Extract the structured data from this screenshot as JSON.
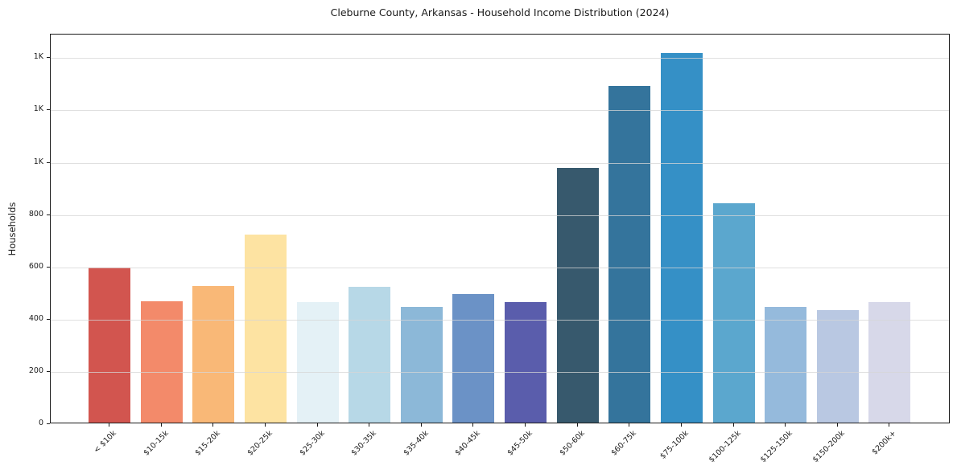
{
  "chart_data": {
    "type": "bar",
    "title": "Cleburne County, Arkansas - Household Income Distribution (2024)",
    "xlabel": "",
    "ylabel": "Households",
    "categories": [
      "< $10k",
      "$10-15k",
      "$15-20k",
      "$20-25k",
      "$25-30k",
      "$30-35k",
      "$35-40k",
      "$40-45k",
      "$45-50k",
      "$50-60k",
      "$60-75k",
      "$75-100k",
      "$100-125k",
      "$125-150k",
      "$150-200k",
      "$200k+"
    ],
    "values": [
      593,
      463,
      523,
      718,
      461,
      520,
      443,
      492,
      461,
      975,
      1287,
      1412,
      838,
      442,
      430,
      462
    ],
    "bar_colors": [
      "#d2554f",
      "#f38a6a",
      "#f9b877",
      "#fde3a2",
      "#e4f1f6",
      "#b7d8e7",
      "#8cb8d8",
      "#6b92c6",
      "#5a5dac",
      "#37596d",
      "#34749c",
      "#3590c6",
      "#5ba7ce",
      "#95badc",
      "#b9c8e2",
      "#d7d8e9"
    ],
    "ylim": [
      0,
      1490
    ],
    "yticks": [
      {
        "value": 0,
        "label": "0"
      },
      {
        "value": 200,
        "label": "200"
      },
      {
        "value": 400,
        "label": "400"
      },
      {
        "value": 600,
        "label": "600"
      },
      {
        "value": 800,
        "label": "800"
      },
      {
        "value": 1000,
        "label": "1K"
      },
      {
        "value": 1200,
        "label": "1K"
      },
      {
        "value": 1400,
        "label": "1K"
      }
    ],
    "grid": "horizontal",
    "legend": "none"
  },
  "colors": {
    "background": "#ffffff",
    "spine": "#1a1a1a",
    "gridline": "#d6d6d6",
    "text": "#1a1a1a"
  }
}
